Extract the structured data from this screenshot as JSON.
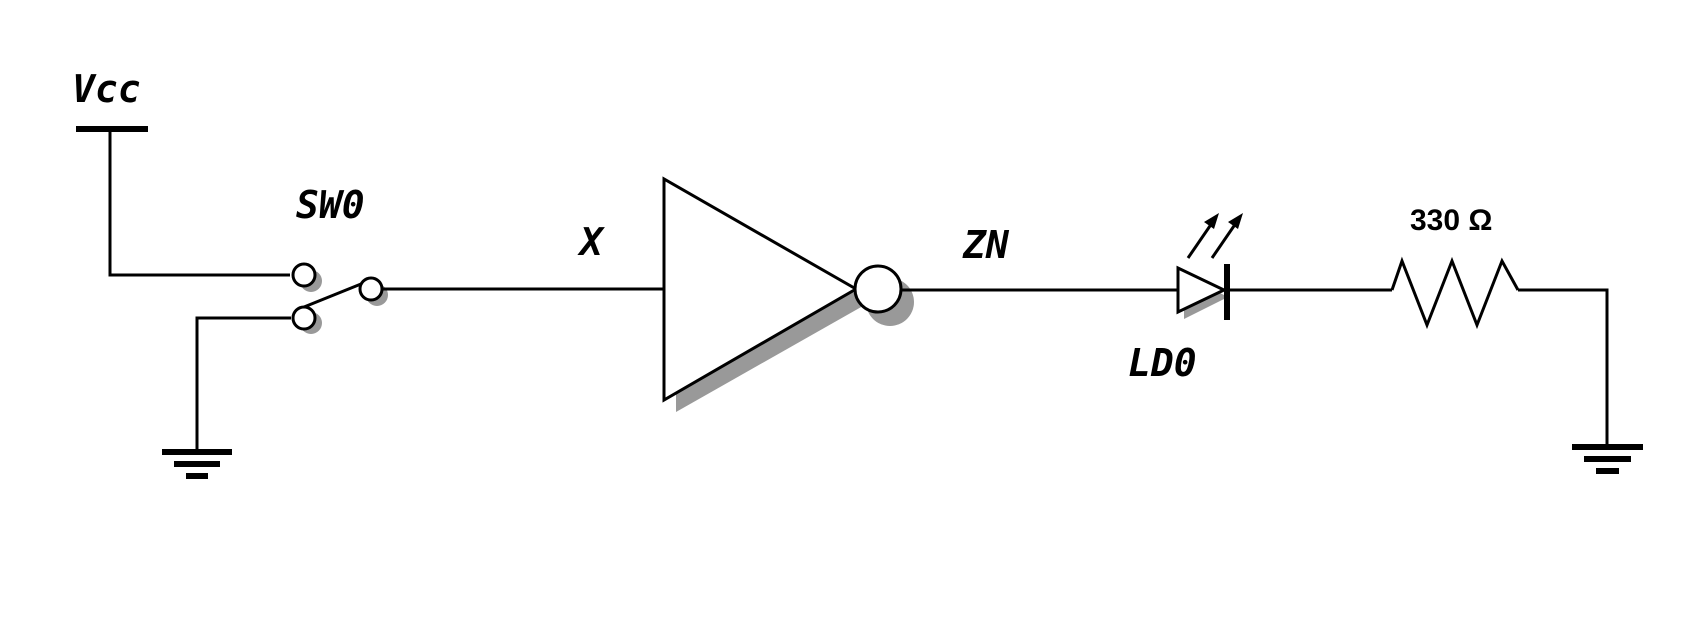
{
  "diagram": {
    "labels": {
      "vcc": "Vcc",
      "switch": "SW0",
      "input_net": "X",
      "output_net": "ZN",
      "led": "LD0",
      "resistor": "330 Ω"
    },
    "colors": {
      "line": "#000000",
      "shadow": "#999999",
      "background": "#ffffff"
    }
  }
}
